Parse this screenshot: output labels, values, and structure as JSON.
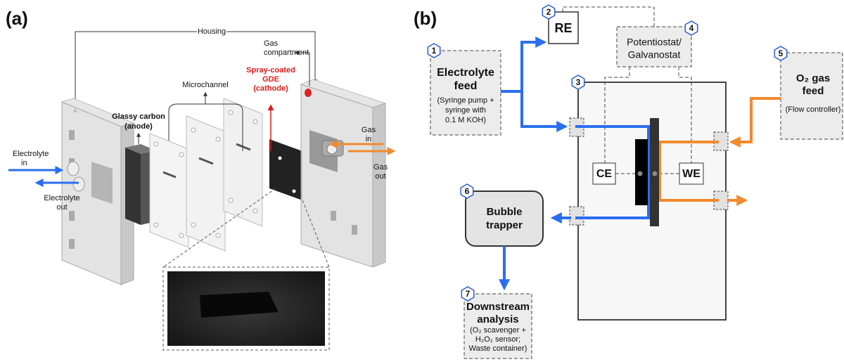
{
  "panel_a": {
    "label": "(a)",
    "housing": "Housing",
    "gas_compartment": [
      "Gas",
      "compartment"
    ],
    "microchannel": "Microchannel",
    "anode": [
      "Glassy carbon",
      "(anode)"
    ],
    "cathode": [
      "Spray-coated",
      "GDE",
      "(cathode)"
    ],
    "electrolyte_in": [
      "Electrolyte",
      "in"
    ],
    "electrolyte_out": [
      "Electrolyte",
      "out"
    ],
    "gas_in": [
      "Gas",
      "in"
    ],
    "gas_out": [
      "Gas",
      "out"
    ]
  },
  "panel_b": {
    "label": "(b)",
    "nodes": [
      {
        "number": "1",
        "title": [
          "Electrolyte",
          "feed"
        ],
        "detail": [
          "(Syringe pump +",
          "syringe with",
          "0.1 M KOH)"
        ]
      },
      {
        "number": "2",
        "title": [
          "RE"
        ]
      },
      {
        "number": "3",
        "electrodes": [
          "CE",
          "WE"
        ]
      },
      {
        "number": "4",
        "title": [
          "Potentiostat/",
          "Galvanostat"
        ]
      },
      {
        "number": "5",
        "title": [
          "O₂ gas",
          "feed"
        ],
        "detail": [
          "(Flow controller)"
        ]
      },
      {
        "number": "6",
        "title": [
          "Bubble",
          "trapper"
        ]
      },
      {
        "number": "7",
        "title": [
          "Downstream",
          "analysis"
        ],
        "detail": [
          "(O₂ scavenger +",
          "H₂O₂ sensor;",
          "Waste container)"
        ]
      }
    ]
  }
}
